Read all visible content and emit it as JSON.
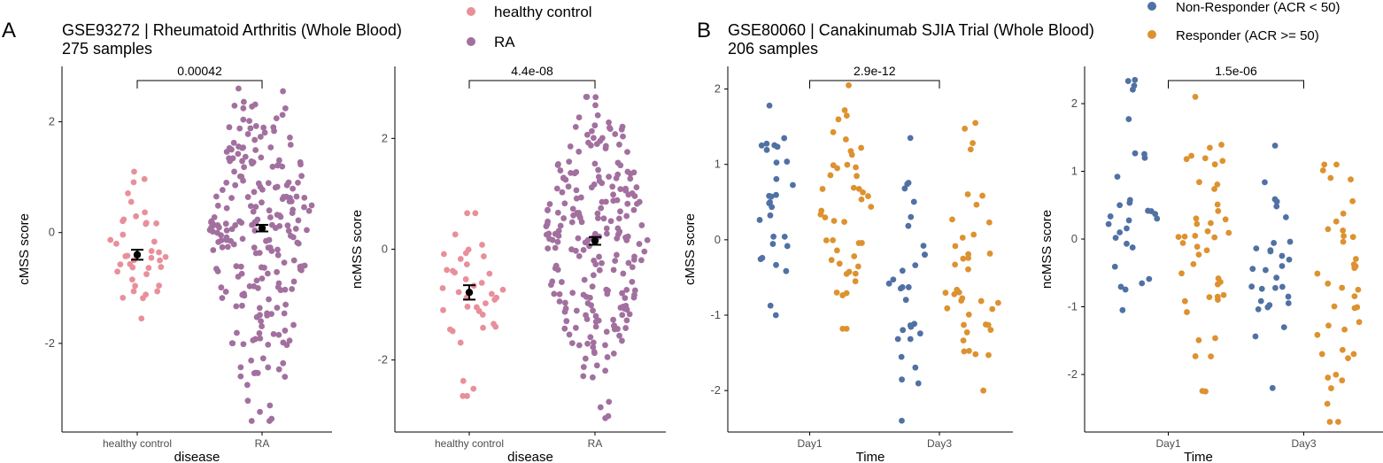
{
  "colors": {
    "healthy": "#e8909a",
    "ra": "#a2709f",
    "nonresp": "#5071a4",
    "resp": "#dd9230",
    "axis": "#000000",
    "tick_text": "#4d4d4d"
  },
  "panel_a": {
    "letter": "A",
    "title_line1": "GSE93272 | Rheumatoid Arthritis (Whole Blood)",
    "title_line2": "275 samples",
    "legend": {
      "items": [
        "healthy control",
        "RA"
      ]
    }
  },
  "panel_b": {
    "letter": "B",
    "title_line1": "GSE80060 | Canakinumab SJIA Trial (Whole Blood)",
    "title_line2": "206 samples",
    "legend": {
      "items": [
        "Non-Responder (ACR < 50)",
        "Responder (ACR >= 50)"
      ]
    }
  },
  "chart_data": [
    {
      "id": "a1",
      "type": "scatter",
      "subtype": "beeswarm",
      "xlabel": "disease",
      "ylabel": "cMSS score",
      "categories": [
        "healthy control",
        "RA"
      ],
      "ylim": [
        -3.6,
        3.0
      ],
      "yticks": [
        -2,
        0,
        2
      ],
      "series": [
        {
          "name": "healthy control",
          "n": 40,
          "min": -1.55,
          "max": 1.1,
          "mean": -0.4,
          "se": 0.09
        },
        {
          "name": "RA",
          "n": 235,
          "min": -3.4,
          "max": 2.6,
          "mean": 0.08,
          "se": 0.06
        }
      ],
      "pvalue": "0.00042"
    },
    {
      "id": "a2",
      "type": "scatter",
      "subtype": "beeswarm",
      "xlabel": "disease",
      "ylabel": "ncMSS score",
      "categories": [
        "healthy control",
        "RA"
      ],
      "ylim": [
        -3.3,
        3.3
      ],
      "yticks": [
        -2,
        0,
        2
      ],
      "series": [
        {
          "name": "healthy control",
          "n": 40,
          "min": -2.65,
          "max": 0.65,
          "mean": -0.78,
          "se": 0.13
        },
        {
          "name": "RA",
          "n": 235,
          "min": -3.05,
          "max": 2.75,
          "mean": 0.15,
          "se": 0.07
        }
      ],
      "pvalue": "4.4e-08"
    },
    {
      "id": "b1",
      "type": "scatter",
      "subtype": "grouped-beeswarm",
      "xlabel": "Time",
      "ylabel": "cMSS score",
      "categories": [
        "Day1",
        "Day3"
      ],
      "ylim": [
        -2.55,
        2.3
      ],
      "yticks": [
        -2,
        -1,
        0,
        1,
        2
      ],
      "series": [
        {
          "name": "Non-Responder (ACR < 50)",
          "by_category": [
            {
              "n": 30,
              "min": -1.0,
              "max": 1.78,
              "mean": 0.4
            },
            {
              "n": 30,
              "min": -2.4,
              "max": 1.35,
              "mean": -0.6
            }
          ]
        },
        {
          "name": "Responder (ACR >= 50)",
          "by_category": [
            {
              "n": 45,
              "min": -1.18,
              "max": 2.05,
              "mean": 0.5
            },
            {
              "n": 40,
              "min": -2.0,
              "max": 1.55,
              "mean": -0.7
            }
          ]
        }
      ],
      "pvalue": "2.9e-12"
    },
    {
      "id": "b2",
      "type": "scatter",
      "subtype": "grouped-beeswarm",
      "xlabel": "Time",
      "ylabel": "ncMSS score",
      "categories": [
        "Day1",
        "Day3"
      ],
      "ylim": [
        -2.85,
        2.55
      ],
      "yticks": [
        -2,
        -1,
        0,
        1,
        2
      ],
      "series": [
        {
          "name": "Non-Responder (ACR < 50)",
          "by_category": [
            {
              "n": 30,
              "min": -1.05,
              "max": 2.35,
              "mean": 0.3
            },
            {
              "n": 30,
              "min": -2.2,
              "max": 1.38,
              "mean": -0.5
            }
          ]
        },
        {
          "name": "Responder (ACR >= 50)",
          "by_category": [
            {
              "n": 45,
              "min": -2.25,
              "max": 2.1,
              "mean": 0.3
            },
            {
              "n": 40,
              "min": -2.7,
              "max": 1.1,
              "mean": -0.5
            }
          ]
        }
      ],
      "pvalue": "1.5e-06"
    }
  ]
}
